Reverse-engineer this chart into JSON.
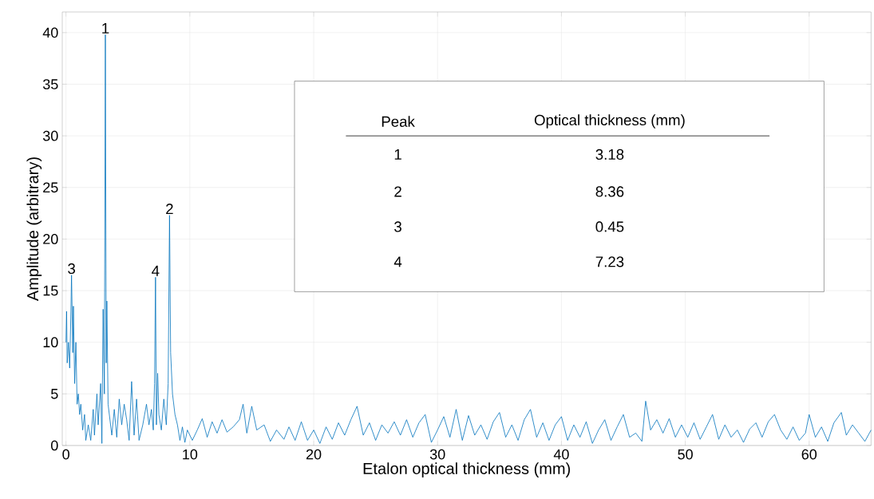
{
  "chart_data": {
    "type": "line",
    "xlabel": "Etalon optical thickness (mm)",
    "ylabel": "Amplitude (arbitrary)",
    "xlim": [
      -0.3,
      65
    ],
    "ylim": [
      0,
      42
    ],
    "xticks": [
      0,
      10,
      20,
      30,
      40,
      50,
      60
    ],
    "yticks": [
      0,
      5,
      10,
      15,
      20,
      25,
      30,
      35,
      40
    ],
    "grid": true,
    "x": [
      0,
      0.05,
      0.1,
      0.2,
      0.3,
      0.4,
      0.45,
      0.55,
      0.6,
      0.7,
      0.8,
      0.9,
      1.0,
      1.1,
      1.2,
      1.35,
      1.5,
      1.6,
      1.8,
      2.0,
      2.2,
      2.3,
      2.5,
      2.6,
      2.8,
      2.9,
      3.0,
      3.1,
      3.18,
      3.25,
      3.3,
      3.4,
      3.5,
      3.7,
      3.9,
      4.1,
      4.3,
      4.5,
      4.7,
      4.9,
      5.1,
      5.3,
      5.5,
      5.7,
      5.9,
      6.2,
      6.5,
      6.7,
      6.9,
      7.05,
      7.15,
      7.23,
      7.3,
      7.4,
      7.5,
      7.7,
      7.9,
      8.1,
      8.25,
      8.36,
      8.45,
      8.6,
      8.8,
      9.0,
      9.2,
      9.4,
      9.6,
      9.8,
      10.2,
      10.6,
      11,
      11.4,
      11.8,
      12.2,
      12.6,
      13,
      13.5,
      14,
      14.3,
      14.6,
      15,
      15.4,
      16,
      16.5,
      17,
      17.6,
      18,
      18.5,
      19,
      19.5,
      20,
      20.5,
      21,
      21.5,
      22,
      22.5,
      23,
      23.5,
      24,
      24.5,
      25,
      25.5,
      26,
      26.5,
      27,
      27.5,
      28,
      28.5,
      29,
      29.5,
      30,
      30.5,
      31,
      31.5,
      32,
      32.5,
      33,
      33.5,
      34,
      34.5,
      35,
      35.5,
      36,
      36.5,
      37,
      37.5,
      38,
      38.5,
      39,
      39.5,
      40,
      40.5,
      41,
      41.5,
      42,
      42.5,
      43,
      43.5,
      44,
      44.5,
      45,
      45.5,
      46,
      46.5,
      46.8,
      47.2,
      47.7,
      48.2,
      48.7,
      49.2,
      49.7,
      50.2,
      50.7,
      51.2,
      51.7,
      52.2,
      52.7,
      53.2,
      53.7,
      54.2,
      54.7,
      55.2,
      55.7,
      56.2,
      56.7,
      57.2,
      57.7,
      58.2,
      58.7,
      59.2,
      59.7,
      60,
      60.5,
      61,
      61.5,
      62,
      62.6,
      63,
      63.5,
      64,
      64.5,
      65
    ],
    "series": [
      {
        "color": "#0072bd",
        "values": [
          10,
          13,
          8,
          10,
          7.5,
          13,
          16.5,
          9,
          13.5,
          6,
          10,
          4,
          5,
          3,
          4,
          1.5,
          3,
          0.5,
          2,
          0.5,
          3.5,
          1,
          5,
          2,
          6,
          0.2,
          13.2,
          5,
          39.8,
          8,
          14,
          4,
          3,
          1,
          3.5,
          0.8,
          4.5,
          2,
          4,
          2.5,
          0.5,
          6.2,
          1,
          4.5,
          0.5,
          2,
          4,
          2,
          3.5,
          1.5,
          6,
          16.3,
          2,
          7,
          3,
          1.5,
          4.5,
          2,
          6,
          22.3,
          9,
          5,
          3,
          2,
          0.5,
          1.8,
          0.3,
          1.5,
          0.5,
          1.5,
          2.6,
          0.8,
          2.3,
          1.2,
          2.5,
          1.3,
          1.8,
          2.5,
          4,
          1.2,
          3.8,
          1.5,
          2,
          0.4,
          1.5,
          0.6,
          1.8,
          0.5,
          2.3,
          0.5,
          1.5,
          0.2,
          1.8,
          0.6,
          2.2,
          1,
          2.5,
          3.8,
          1,
          2.2,
          0.5,
          2,
          1.2,
          2.3,
          1,
          2.5,
          0.8,
          2.2,
          3,
          0.3,
          1.5,
          2.8,
          0.8,
          3.5,
          0.5,
          2.9,
          1,
          2,
          0.6,
          2.3,
          3.2,
          0.8,
          2,
          0.5,
          2.5,
          3.5,
          0.8,
          2.2,
          0.5,
          2,
          2.8,
          0.5,
          2,
          0.8,
          2.3,
          0.2,
          1.5,
          2.5,
          0.5,
          1.8,
          3,
          0.8,
          1.2,
          0.4,
          4.3,
          1.5,
          2.5,
          1.2,
          2.6,
          0.8,
          2,
          0.8,
          2.2,
          0.6,
          1.8,
          3,
          0.6,
          2,
          0.8,
          1.5,
          0.3,
          1.6,
          2.2,
          0.8,
          2.3,
          3,
          1.5,
          0.6,
          1.8,
          0.5,
          1.2,
          3,
          0.8,
          1.8,
          0.4,
          2.2,
          3.2,
          1,
          2,
          1.2,
          0.4,
          1.5
        ]
      }
    ],
    "annotations": [
      {
        "text": "1",
        "x": 3.18,
        "y": 39.8
      },
      {
        "text": "2",
        "x": 8.36,
        "y": 22.3
      },
      {
        "text": "3",
        "x": 0.45,
        "y": 16.5
      },
      {
        "text": "4",
        "x": 7.23,
        "y": 16.3
      },
      "Peak",
      "Optical thickness (mm)",
      "1",
      "3.18",
      "2",
      "8.36",
      "3",
      "0.45",
      "4",
      "7.23"
    ]
  }
}
